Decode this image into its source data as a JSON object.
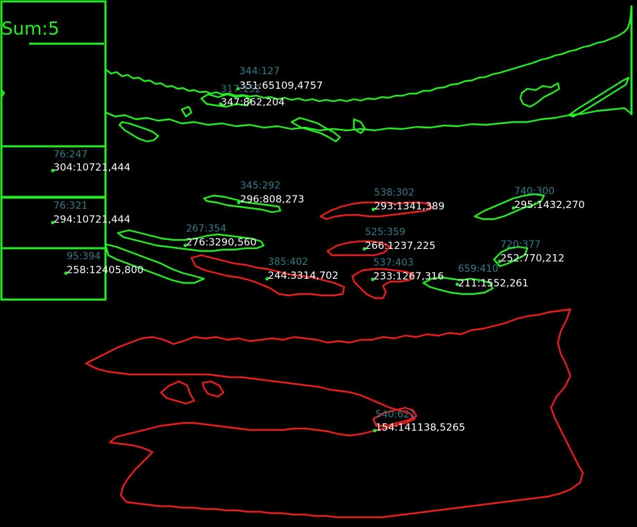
{
  "summary": {
    "sum_label": "Sum:",
    "sum_value": "5"
  },
  "colors": {
    "green": "#22ee22",
    "red": "#ee1c1c",
    "teal": "#2f7c86",
    "white": "#ffffff",
    "background": "#000000"
  },
  "detections": [
    {
      "id": "d01",
      "color": "green",
      "coord_label": "344:127",
      "info_label": "351:65109,4757"
    },
    {
      "id": "d02",
      "color": "green",
      "coord_label": "317:152",
      "info_label": "347:862,204"
    },
    {
      "id": "d03",
      "color": "green",
      "coord_label": "76:247",
      "info_label": "304:10721,444"
    },
    {
      "id": "d04",
      "color": "green",
      "coord_label": "76:321",
      "info_label": "294:10721,444"
    },
    {
      "id": "d05",
      "color": "green",
      "coord_label": "345:292",
      "info_label": "296:808,273"
    },
    {
      "id": "d06",
      "color": "red",
      "coord_label": "538:302",
      "info_label": "293:1341,389"
    },
    {
      "id": "d07",
      "color": "green",
      "coord_label": "740:300",
      "info_label": "295:1432,270"
    },
    {
      "id": "d08",
      "color": "green",
      "coord_label": "267:354",
      "info_label": "276:3290,560"
    },
    {
      "id": "d09",
      "color": "red",
      "coord_label": "525:359",
      "info_label": "266:1237,225"
    },
    {
      "id": "d10",
      "color": "green",
      "coord_label": "720:377",
      "info_label": "252:770,212"
    },
    {
      "id": "d11",
      "color": "green",
      "coord_label": "95:394",
      "info_label": "258:12405,800"
    },
    {
      "id": "d12",
      "color": "red",
      "coord_label": "385:402",
      "info_label": "244:3314,702"
    },
    {
      "id": "d13",
      "color": "red",
      "coord_label": "537:403",
      "info_label": "233:1267,316"
    },
    {
      "id": "d14",
      "color": "green",
      "coord_label": "659:410",
      "info_label": "211:1552,261"
    },
    {
      "id": "d15",
      "color": "red",
      "coord_label": "540:621",
      "info_label": "154:141138,5265"
    }
  ]
}
